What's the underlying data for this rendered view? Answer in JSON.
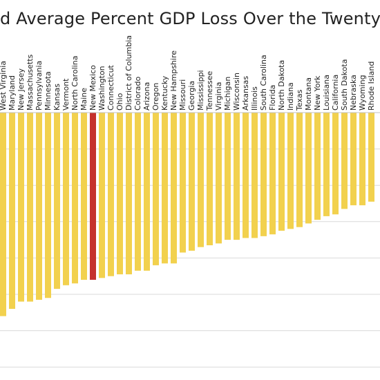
{
  "chart_data": {
    "type": "bar",
    "title": "d Average Percent GDP Loss Over the Twenty-First",
    "categories": [
      "West Virginia",
      "Maryland",
      "New Jersey",
      "Massachusetts",
      "Pennsylvania",
      "Minnesota",
      "Kansas",
      "Vermont",
      "North Carolina",
      "Maine",
      "New Mexico",
      "Washington",
      "Connecticut",
      "Ohio",
      "District of Columbia",
      "Colorado",
      "Arizona",
      "Oregon",
      "Kentucky",
      "New Hampshire",
      "Missouri",
      "Georgia",
      "Mississippi",
      "Tennessee",
      "Virginia",
      "Michigan",
      "Wisconsin",
      "Arkansas",
      "Illinois",
      "South Carolina",
      "Florida",
      "North Dakota",
      "Indiana",
      "Texas",
      "Montana",
      "New York",
      "Louisiana",
      "California",
      "South Dakota",
      "Nebraska",
      "Wyoming",
      "Rhode Island"
    ],
    "values": [
      -5.6,
      -5.4,
      -5.2,
      -5.2,
      -5.15,
      -5.1,
      -4.85,
      -4.75,
      -4.7,
      -4.6,
      -4.6,
      -4.55,
      -4.5,
      -4.45,
      -4.45,
      -4.35,
      -4.35,
      -4.2,
      -4.15,
      -4.15,
      -3.85,
      -3.8,
      -3.7,
      -3.65,
      -3.6,
      -3.5,
      -3.5,
      -3.45,
      -3.45,
      -3.4,
      -3.35,
      -3.25,
      -3.2,
      -3.15,
      -3.05,
      -2.95,
      -2.85,
      -2.8,
      -2.65,
      -2.55,
      -2.55,
      -2.45
    ],
    "highlight": "New Mexico",
    "ylim": [
      -7,
      0
    ],
    "grid": true,
    "colors": {
      "bar": "#F2D14E",
      "highlight": "#C5312C",
      "grid": "#D9D9D9",
      "axis": "#BFBFBF"
    }
  }
}
